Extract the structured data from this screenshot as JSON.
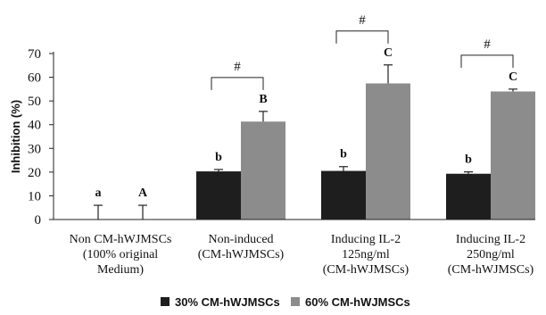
{
  "chart_data": {
    "type": "bar",
    "ylabel": "Inhibition  (%)",
    "ylim": [
      0,
      70
    ],
    "yticks": [
      "0",
      "10",
      "20",
      "30",
      "40",
      "50",
      "60",
      "70"
    ],
    "grid": false,
    "legend_position": "bottom",
    "categories": [
      [
        "Non CM-hWJMSCs",
        "(100% original",
        "Medium)"
      ],
      [
        "Non-induced",
        "(CM-hWJMSCs)"
      ],
      [
        "Inducing IL-2",
        "125ng/ml",
        "(CM-hWJMSCs)"
      ],
      [
        "Inducing IL-2",
        "250ng/ml",
        "(CM-hWJMSCs)"
      ]
    ],
    "series": [
      {
        "name": "30%  CM-hWJMSCs",
        "color": "#1e1e1e",
        "values": [
          0,
          20.3,
          20.5,
          19.3
        ],
        "errors": [
          6,
          0.8,
          1.8,
          0.8
        ],
        "labels": [
          "a",
          "b",
          "b",
          "b"
        ]
      },
      {
        "name": "60%  CM-hWJMSCs",
        "color": "#8c8c8c",
        "values": [
          0,
          41.3,
          57.4,
          54.0
        ],
        "errors": [
          6,
          4.3,
          7.8,
          1.0
        ],
        "labels": [
          "A",
          "B",
          "C",
          "C"
        ]
      }
    ],
    "brackets": [
      {
        "category": 1,
        "label": "#"
      },
      {
        "category": 2,
        "label": "#"
      },
      {
        "category": 3,
        "label": "#"
      }
    ]
  }
}
